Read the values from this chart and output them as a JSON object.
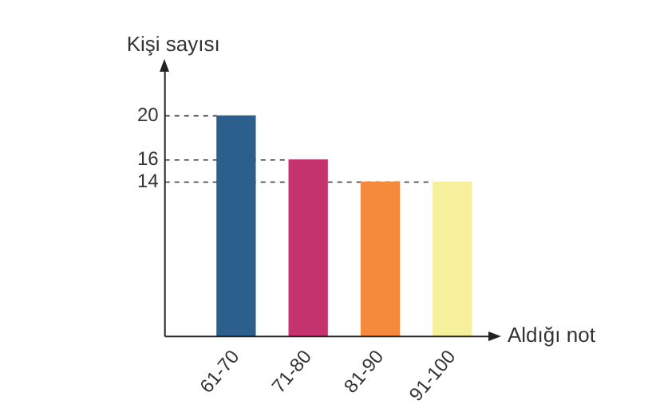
{
  "chart_data": {
    "type": "bar",
    "ylabel": "Kişi sayısı",
    "xlabel": "Aldığı not",
    "categories": [
      "61-70",
      "71-80",
      "81-90",
      "91-100"
    ],
    "values": [
      20,
      16,
      14,
      14
    ],
    "colors": [
      "#2b5f8c",
      "#c4336e",
      "#f58a3c",
      "#f6ef9c"
    ],
    "ylim": [
      0,
      24
    ],
    "yticks": [
      14,
      16,
      20
    ],
    "ref_lines": [
      {
        "axis": "y",
        "value": 20,
        "line_style": "dashed"
      },
      {
        "axis": "y",
        "value": 16,
        "line_style": "dashed"
      },
      {
        "axis": "y",
        "value": 14,
        "line_style": "dashed"
      }
    ],
    "grid": false,
    "legend": false
  }
}
